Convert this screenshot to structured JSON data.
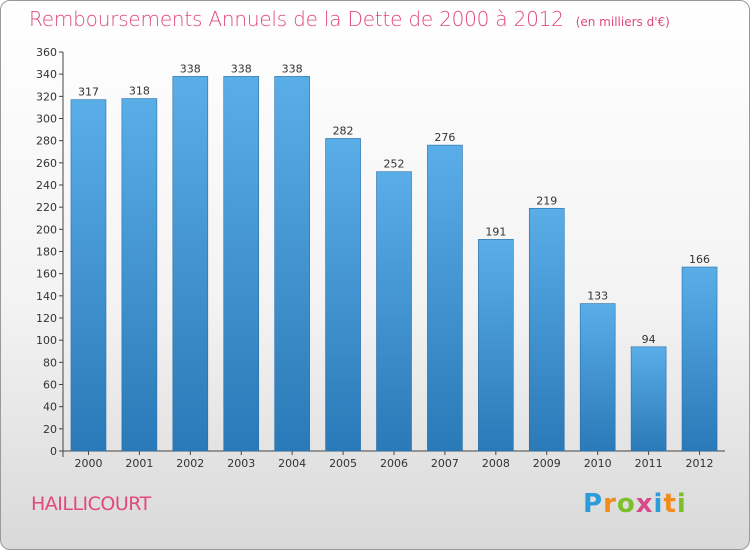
{
  "title": "Remboursements Annuels de la Dette de 2000 à 2012",
  "unit_note": "(en milliers d'€)",
  "commune": "HAILLICOURT",
  "logo": {
    "letters": [
      "P",
      "r",
      "o",
      "x",
      "i",
      "t",
      "i"
    ],
    "colors": [
      "#2e9cd8",
      "#f28a1c",
      "#7cbf2a",
      "#d94a8c",
      "#2e9cd8",
      "#f28a1c",
      "#7cbf2a"
    ]
  },
  "chart_data": {
    "type": "bar",
    "categories": [
      "2000",
      "2001",
      "2002",
      "2003",
      "2004",
      "2005",
      "2006",
      "2007",
      "2008",
      "2009",
      "2010",
      "2011",
      "2012"
    ],
    "values": [
      317,
      318,
      338,
      338,
      338,
      282,
      252,
      276,
      191,
      219,
      133,
      94,
      166
    ],
    "ylim": [
      0,
      360
    ],
    "ytick_step": 20,
    "grid": false,
    "bar_color_top": "#5aaee8",
    "bar_color_bottom": "#2a79b8"
  }
}
